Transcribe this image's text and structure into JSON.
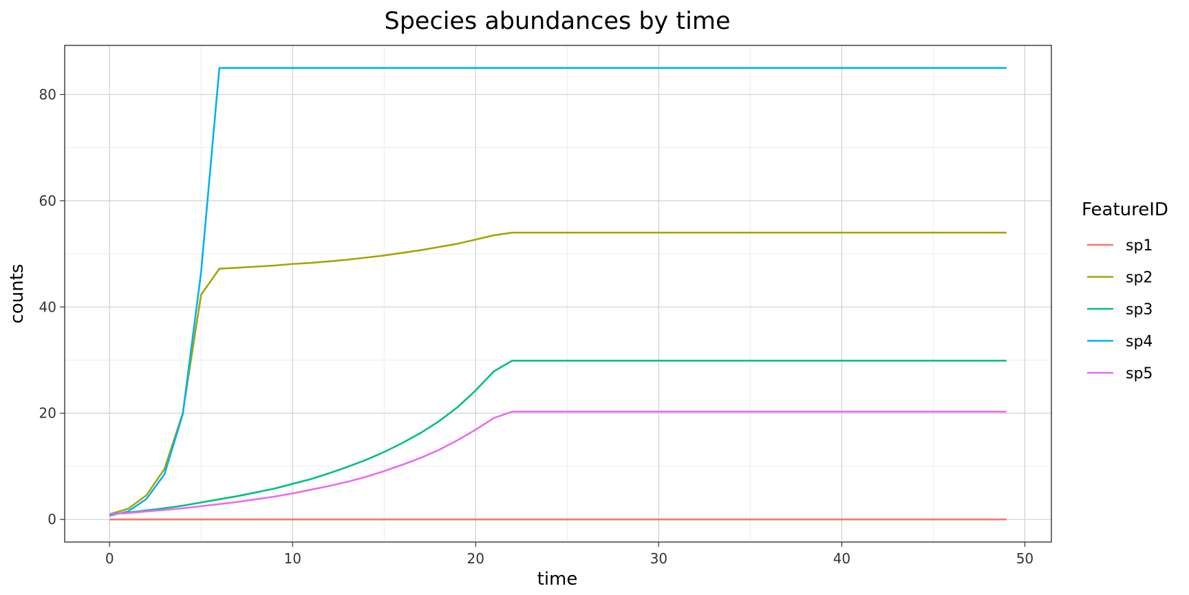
{
  "chart_data": {
    "type": "line",
    "title": "Species abundances by time",
    "xlabel": "time",
    "ylabel": "counts",
    "xlim": [
      -2.45,
      51.45
    ],
    "ylim": [
      -4.25,
      89.25
    ],
    "xticks": [
      0,
      10,
      20,
      30,
      40,
      50
    ],
    "yticks": [
      0,
      20,
      40,
      60,
      80
    ],
    "grid": true,
    "legend": {
      "title": "FeatureID",
      "position": "right"
    },
    "x": [
      0,
      1,
      2,
      3,
      4,
      5,
      6,
      7,
      8,
      9,
      10,
      11,
      12,
      13,
      14,
      15,
      16,
      17,
      18,
      19,
      20,
      21,
      22,
      23,
      24,
      25,
      26,
      27,
      28,
      29,
      30,
      31,
      32,
      33,
      34,
      35,
      36,
      37,
      38,
      39,
      40,
      41,
      42,
      43,
      44,
      45,
      46,
      47,
      48,
      49
    ],
    "series": [
      {
        "name": "sp1",
        "color": "#F8766D",
        "values": [
          0,
          0,
          0,
          0,
          0,
          0,
          0,
          0,
          0,
          0,
          0,
          0,
          0,
          0,
          0,
          0,
          0,
          0,
          0,
          0,
          0,
          0,
          0,
          0,
          0,
          0,
          0,
          0,
          0,
          0,
          0,
          0,
          0,
          0,
          0,
          0,
          0,
          0,
          0,
          0,
          0,
          0,
          0,
          0,
          0,
          0,
          0,
          0,
          0,
          0
        ]
      },
      {
        "name": "sp2",
        "color": "#A3A500",
        "values": [
          1,
          2,
          4.5,
          9.5,
          20,
          42.3,
          47.2,
          47.4,
          47.6,
          47.8,
          48.1,
          48.3,
          48.6,
          48.9,
          49.3,
          49.7,
          50.2,
          50.7,
          51.3,
          51.9,
          52.7,
          53.5,
          54,
          54,
          54,
          54,
          54,
          54,
          54,
          54,
          54,
          54,
          54,
          54,
          54,
          54,
          54,
          54,
          54,
          54,
          54,
          54,
          54,
          54,
          54,
          54,
          54,
          54,
          54,
          54
        ]
      },
      {
        "name": "sp3",
        "color": "#00BF7D",
        "values": [
          1,
          1.3,
          1.7,
          2.1,
          2.6,
          3.2,
          3.8,
          4.4,
          5.1,
          5.8,
          6.7,
          7.6,
          8.7,
          9.9,
          11.2,
          12.7,
          14.4,
          16.3,
          18.5,
          21.1,
          24.3,
          27.9,
          29.9,
          29.9,
          29.9,
          29.9,
          29.9,
          29.9,
          29.9,
          29.9,
          29.9,
          29.9,
          29.9,
          29.9,
          29.9,
          29.9,
          29.9,
          29.9,
          29.9,
          29.9,
          29.9,
          29.9,
          29.9,
          29.9,
          29.9,
          29.9,
          29.9,
          29.9,
          29.9,
          29.9
        ]
      },
      {
        "name": "sp4",
        "color": "#00B0F6",
        "values": [
          0.7,
          1.5,
          3.8,
          8.5,
          19.8,
          46.5,
          85,
          85,
          85,
          85,
          85,
          85,
          85,
          85,
          85,
          85,
          85,
          85,
          85,
          85,
          85,
          85,
          85,
          85,
          85,
          85,
          85,
          85,
          85,
          85,
          85,
          85,
          85,
          85,
          85,
          85,
          85,
          85,
          85,
          85,
          85,
          85,
          85,
          85,
          85,
          85,
          85,
          85,
          85,
          85
        ]
      },
      {
        "name": "sp5",
        "color": "#E76BF3",
        "values": [
          1,
          1.2,
          1.5,
          1.8,
          2.1,
          2.5,
          2.9,
          3.3,
          3.8,
          4.3,
          4.9,
          5.6,
          6.3,
          7.1,
          8,
          9.1,
          10.3,
          11.6,
          13.1,
          14.9,
          16.9,
          19.1,
          20.3,
          20.3,
          20.3,
          20.3,
          20.3,
          20.3,
          20.3,
          20.3,
          20.3,
          20.3,
          20.3,
          20.3,
          20.3,
          20.3,
          20.3,
          20.3,
          20.3,
          20.3,
          20.3,
          20.3,
          20.3,
          20.3,
          20.3,
          20.3,
          20.3,
          20.3,
          20.3,
          20.3
        ]
      }
    ]
  }
}
